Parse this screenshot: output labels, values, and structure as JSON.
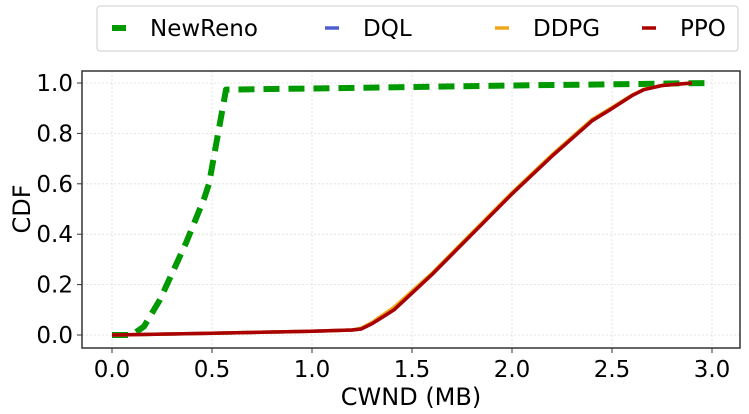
{
  "chart_data": {
    "type": "line",
    "title": "",
    "xlabel": "CWND (MB)",
    "ylabel": "CDF",
    "xlim": [
      -0.15,
      3.15
    ],
    "ylim": [
      -0.05,
      1.05
    ],
    "xticks": [
      "0.0",
      "0.5",
      "1.0",
      "1.5",
      "2.0",
      "2.5",
      "3.0"
    ],
    "xtick_values": [
      0,
      0.5,
      1.0,
      1.5,
      2.0,
      2.5,
      3.0
    ],
    "yticks": [
      "0.0",
      "0.2",
      "0.4",
      "0.6",
      "0.8",
      "1.0"
    ],
    "ytick_values": [
      0,
      0.2,
      0.4,
      0.6,
      0.8,
      1.0
    ],
    "grid": true,
    "legend_placement": "top, outside, 4 columns",
    "series": [
      {
        "name": "NewReno",
        "color": "#009900",
        "style": "dashed",
        "x": [
          0,
          0.1,
          0.16,
          0.24,
          0.37,
          0.46,
          0.485,
          0.57,
          1.0,
          2.0,
          2.5,
          3.0
        ],
        "y": [
          0,
          0,
          0.034,
          0.14,
          0.365,
          0.54,
          0.6,
          0.974,
          0.978,
          0.99,
          0.995,
          1.0
        ]
      },
      {
        "name": "DQL",
        "color": "#4f5fcf",
        "style": "solid",
        "x": [
          0,
          0.5,
          1.0,
          1.2,
          1.245,
          1.3,
          1.41,
          1.6,
          1.8,
          2.0,
          2.2,
          2.4,
          2.49,
          2.6,
          2.66,
          2.75,
          2.9
        ],
        "y": [
          0,
          0.007,
          0.015,
          0.02,
          0.024,
          0.045,
          0.1,
          0.24,
          0.4,
          0.56,
          0.71,
          0.85,
          0.894,
          0.95,
          0.974,
          0.99,
          1.0
        ]
      },
      {
        "name": "DDPG",
        "color": "#f0a818",
        "style": "solid",
        "x": [
          0,
          0.5,
          1.0,
          1.2,
          1.245,
          1.3,
          1.41,
          1.6,
          1.8,
          2.0,
          2.2,
          2.4,
          2.49,
          2.6,
          2.66,
          2.75,
          2.9
        ],
        "y": [
          0,
          0.007,
          0.015,
          0.02,
          0.026,
          0.05,
          0.11,
          0.245,
          0.405,
          0.565,
          0.715,
          0.855,
          0.898,
          0.952,
          0.975,
          0.99,
          1.0
        ]
      },
      {
        "name": "PPO",
        "color": "#aa0000",
        "style": "solid",
        "x": [
          0,
          0.5,
          1.0,
          1.2,
          1.245,
          1.3,
          1.41,
          1.6,
          1.8,
          2.0,
          2.2,
          2.4,
          2.49,
          2.6,
          2.66,
          2.75,
          2.9
        ],
        "y": [
          0,
          0.007,
          0.015,
          0.02,
          0.024,
          0.045,
          0.1,
          0.24,
          0.4,
          0.56,
          0.71,
          0.85,
          0.894,
          0.95,
          0.974,
          0.99,
          1.0
        ]
      }
    ]
  }
}
